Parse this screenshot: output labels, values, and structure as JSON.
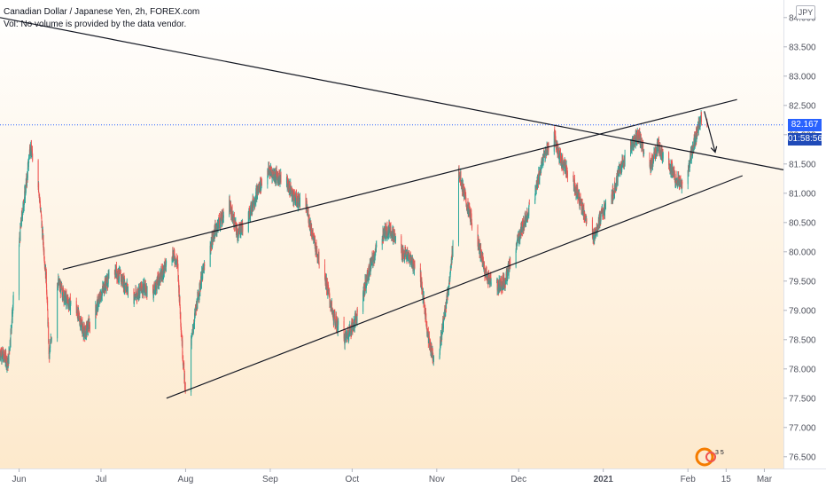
{
  "header": {
    "title": "Canadian Dollar / Japanese Yen, 2h, FOREX.com",
    "volume_note": "Vol: No volume is provided by the data vendor.",
    "currency": "JPY"
  },
  "badges": {
    "last_price": "82.167",
    "countdown": "01:58:56"
  },
  "logo_text": "3 5",
  "colors": {
    "background_top": "#ffffff",
    "background_bottom": "#fde9cc",
    "up": "#26a69a",
    "down": "#ef5350",
    "price_badge": "#2962ff",
    "countdown_badge": "#1f4ab8",
    "line": "#131722",
    "axis_text": "#50535e"
  },
  "chart_data": {
    "type": "candlestick",
    "symbol": "CADJPY",
    "interval": "2h",
    "x_ticks": [
      "Jun",
      "Jul",
      "Aug",
      "Sep",
      "Oct",
      "Nov",
      "Dec",
      "2021",
      "Feb",
      "15",
      "Mar"
    ],
    "y_ticks": [
      "84.000",
      "83.500",
      "83.000",
      "82.500",
      "82.000",
      "81.500",
      "81.000",
      "80.500",
      "80.000",
      "79.500",
      "79.000",
      "78.500",
      "78.000",
      "77.500",
      "77.000",
      "76.500"
    ],
    "ylim": [
      76.3,
      84.3
    ],
    "xlim": [
      "2020-05-25",
      "2021-03-08"
    ],
    "last_price": 82.167,
    "price_path": [
      [
        "2020-05-25",
        78.3
      ],
      [
        "2020-05-28",
        78.1
      ],
      [
        "2020-05-30",
        79.2
      ],
      [
        "2020-06-02",
        80.6
      ],
      [
        "2020-06-04",
        81.3
      ],
      [
        "2020-06-05",
        81.8
      ],
      [
        "2020-06-08",
        81.2
      ],
      [
        "2020-06-11",
        79.5
      ],
      [
        "2020-06-12",
        78.2
      ],
      [
        "2020-06-15",
        79.5
      ],
      [
        "2020-06-18",
        79.2
      ],
      [
        "2020-06-22",
        79.0
      ],
      [
        "2020-06-25",
        78.6
      ],
      [
        "2020-06-29",
        79.0
      ],
      [
        "2020-07-02",
        79.4
      ],
      [
        "2020-07-06",
        79.7
      ],
      [
        "2020-07-09",
        79.5
      ],
      [
        "2020-07-13",
        79.2
      ],
      [
        "2020-07-16",
        79.4
      ],
      [
        "2020-07-20",
        79.3
      ],
      [
        "2020-07-23",
        79.6
      ],
      [
        "2020-07-27",
        80.0
      ],
      [
        "2020-07-29",
        79.8
      ],
      [
        "2020-07-31",
        78.2
      ],
      [
        "2020-08-01",
        77.6
      ],
      [
        "2020-08-04",
        78.8
      ],
      [
        "2020-08-07",
        79.6
      ],
      [
        "2020-08-12",
        80.4
      ],
      [
        "2020-08-17",
        80.8
      ],
      [
        "2020-08-20",
        80.3
      ],
      [
        "2020-08-24",
        80.6
      ],
      [
        "2020-08-27",
        81.0
      ],
      [
        "2020-08-31",
        81.4
      ],
      [
        "2020-09-03",
        81.3
      ],
      [
        "2020-09-07",
        81.2
      ],
      [
        "2020-09-10",
        80.9
      ],
      [
        "2020-09-14",
        80.8
      ],
      [
        "2020-09-18",
        80.0
      ],
      [
        "2020-09-21",
        79.6
      ],
      [
        "2020-09-24",
        78.9
      ],
      [
        "2020-09-28",
        78.5
      ],
      [
        "2020-10-02",
        78.8
      ],
      [
        "2020-10-05",
        79.3
      ],
      [
        "2020-10-08",
        79.8
      ],
      [
        "2020-10-12",
        80.3
      ],
      [
        "2020-10-15",
        80.4
      ],
      [
        "2020-10-19",
        80.0
      ],
      [
        "2020-10-22",
        79.9
      ],
      [
        "2020-10-26",
        79.6
      ],
      [
        "2020-10-29",
        78.5
      ],
      [
        "2020-11-01",
        78.0
      ],
      [
        "2020-11-04",
        79.0
      ],
      [
        "2020-11-06",
        79.6
      ],
      [
        "2020-11-09",
        81.4
      ],
      [
        "2020-11-12",
        80.8
      ],
      [
        "2020-11-16",
        80.2
      ],
      [
        "2020-11-19",
        79.6
      ],
      [
        "2020-11-23",
        79.4
      ],
      [
        "2020-11-26",
        79.5
      ],
      [
        "2020-11-30",
        80.1
      ],
      [
        "2020-12-03",
        80.5
      ],
      [
        "2020-12-07",
        81.0
      ],
      [
        "2020-12-10",
        81.6
      ],
      [
        "2020-12-14",
        82.0
      ],
      [
        "2020-12-16",
        81.6
      ],
      [
        "2020-12-21",
        81.2
      ],
      [
        "2020-12-24",
        80.8
      ],
      [
        "2020-12-28",
        80.2
      ],
      [
        "2020-12-31",
        80.6
      ],
      [
        "2021-01-04",
        80.9
      ],
      [
        "2021-01-07",
        81.4
      ],
      [
        "2021-01-11",
        81.8
      ],
      [
        "2021-01-14",
        82.0
      ],
      [
        "2021-01-18",
        81.4
      ],
      [
        "2021-01-21",
        81.8
      ],
      [
        "2021-01-25",
        81.5
      ],
      [
        "2021-01-28",
        81.2
      ],
      [
        "2021-01-31",
        81.1
      ],
      [
        "2021-02-02",
        81.6
      ],
      [
        "2021-02-04",
        82.0
      ],
      [
        "2021-02-06",
        82.3
      ],
      [
        "2021-02-08",
        82.17
      ]
    ],
    "trendlines": [
      {
        "name": "descending resistance",
        "from": [
          "2020-05-25",
          84.0
        ],
        "to": [
          "2021-03-08",
          81.4
        ]
      },
      {
        "name": "upper channel",
        "from": [
          "2020-06-17",
          79.7
        ],
        "to": [
          "2021-02-19",
          82.6
        ]
      },
      {
        "name": "lower channel",
        "from": [
          "2020-07-25",
          77.5
        ],
        "to": [
          "2021-02-21",
          81.3
        ]
      }
    ],
    "projection_arrow": {
      "from": [
        "2021-02-07",
        82.4
      ],
      "to": [
        "2021-02-11",
        81.7
      ]
    },
    "annotations": []
  }
}
